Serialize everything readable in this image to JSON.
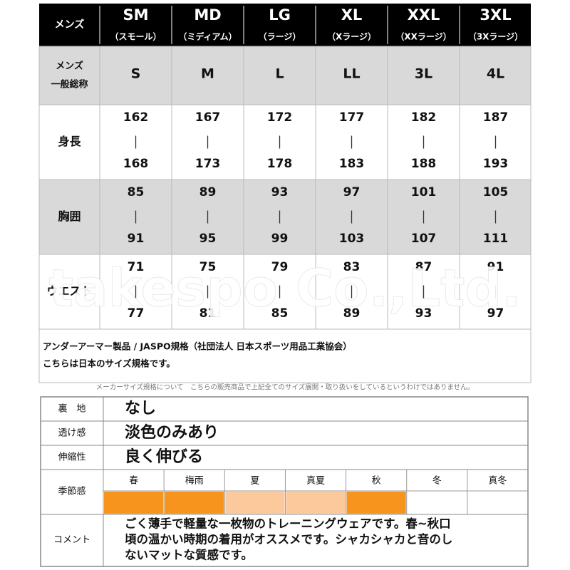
{
  "size_table": {
    "corner": "メンズ",
    "columns": [
      {
        "size": "SM",
        "name": "（スモール）"
      },
      {
        "size": "MD",
        "name": "（ミディアム）"
      },
      {
        "size": "LG",
        "name": "（ラージ）"
      },
      {
        "size": "XL",
        "name": "（Xラージ）"
      },
      {
        "size": "XXL",
        "name": "（XXラージ）"
      },
      {
        "size": "3XL",
        "name": "（3Xラージ）"
      }
    ],
    "rows": [
      {
        "label": [
          "メンズ",
          "一般総称"
        ],
        "cells": [
          "S",
          "M",
          "L",
          "LL",
          "3L",
          "4L"
        ]
      },
      {
        "label": [
          "身長"
        ],
        "cells": [
          [
            162,
            168
          ],
          [
            167,
            173
          ],
          [
            172,
            178
          ],
          [
            177,
            183
          ],
          [
            182,
            188
          ],
          [
            187,
            193
          ]
        ]
      },
      {
        "label": [
          "胸囲"
        ],
        "cells": [
          [
            85,
            91
          ],
          [
            89,
            95
          ],
          [
            93,
            99
          ],
          [
            97,
            103
          ],
          [
            101,
            107
          ],
          [
            105,
            111
          ]
        ]
      },
      {
        "label": [
          "ウエスト"
        ],
        "cells": [
          [
            71,
            77
          ],
          [
            75,
            81
          ],
          [
            79,
            85
          ],
          [
            83,
            89
          ],
          [
            87,
            93
          ],
          [
            91,
            97
          ]
        ]
      }
    ]
  },
  "watermark": "takespo Co.,Ltd.",
  "notes": [
    "アンダーアーマー製品 / JASPO規格（社団法人 日本スポーツ用品工業協会）",
    "こちらは日本のサイズ規格です。"
  ],
  "disclaimer": "メーカーサイズ規格について　こちらの販売商品で上記全てのサイズ展開・取り扱いをしているというわけではありません。",
  "spec_table": {
    "attributes": [
      {
        "label": "裏　地",
        "value": "なし"
      },
      {
        "label": "透け感",
        "value": "淡色のみあり"
      },
      {
        "label": "伸縮性",
        "value": "良く伸びる"
      }
    ],
    "season": {
      "label": "季節感",
      "seasons": [
        {
          "name": "春",
          "color": "#f7941d"
        },
        {
          "name": "梅雨",
          "color": "#f7941d"
        },
        {
          "name": "夏",
          "color": "#fbc99b"
        },
        {
          "name": "真夏",
          "color": "#fbc99b"
        },
        {
          "name": "秋",
          "color": "#f7941d"
        },
        {
          "name": "冬",
          "color": "#ffffff"
        },
        {
          "name": "真冬",
          "color": "#ffffff"
        }
      ]
    },
    "comment": {
      "label": "コメント",
      "lines": [
        "ごく薄手で軽量な一枚物のトレーニングウェアです。春~秋口",
        "頃の温かい時期の着用がオススメです。シャカシャカと音のし",
        "ないマットな質感です。"
      ]
    }
  }
}
